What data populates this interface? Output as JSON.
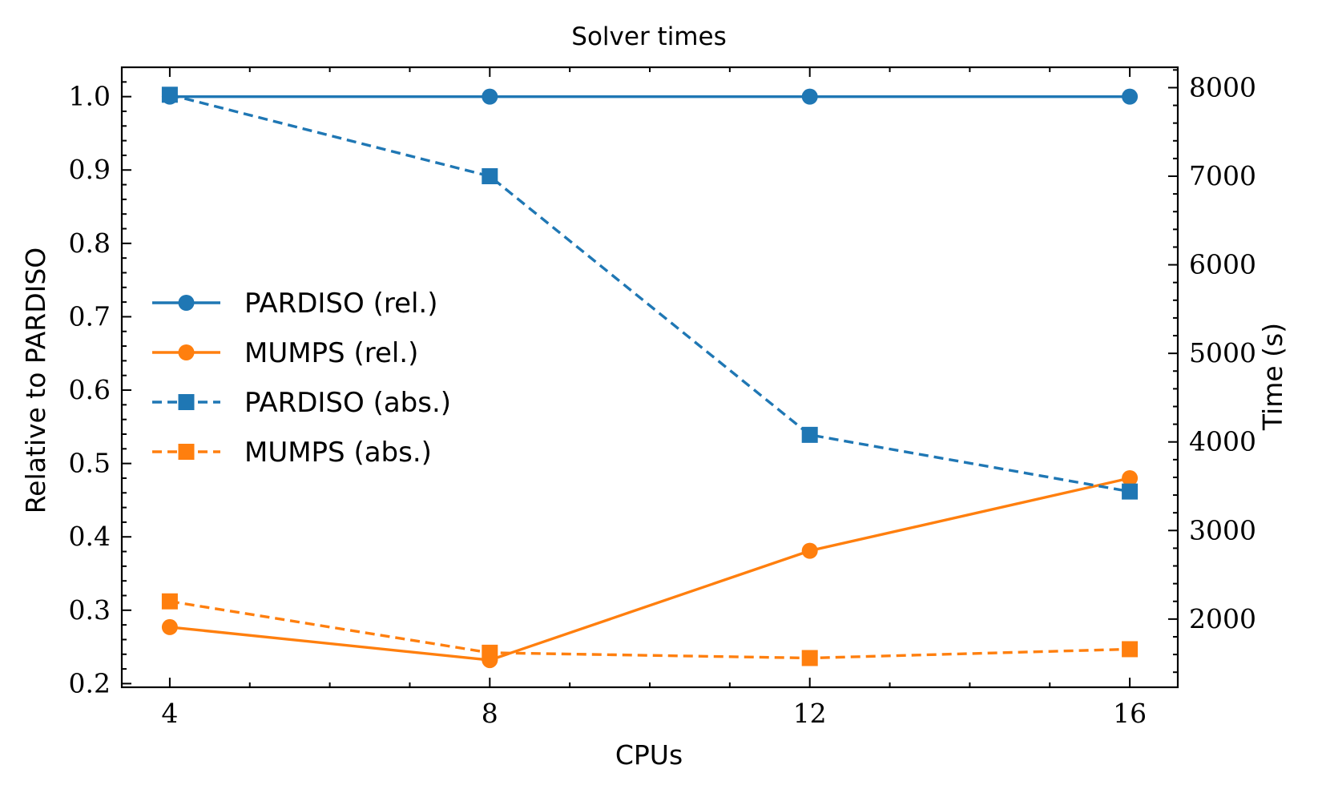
{
  "chart_data": {
    "type": "line",
    "title": "Solver times",
    "xlabel": "CPUs",
    "ylabel_left": "Relative to PARDISO",
    "ylabel_right": "Time (s)",
    "x": [
      4,
      8,
      12,
      16
    ],
    "xlim": [
      3.4,
      16.6
    ],
    "ylim_left": [
      0.195,
      1.04
    ],
    "ylim_right": [
      1230,
      8230
    ],
    "x_ticks": [
      4,
      8,
      12,
      16
    ],
    "y_left_ticks": [
      0.2,
      0.3,
      0.4,
      0.5,
      0.6,
      0.7,
      0.8,
      0.9,
      1.0
    ],
    "y_right_ticks": [
      2000,
      3000,
      4000,
      5000,
      6000,
      7000,
      8000
    ],
    "grid": false,
    "legend_position": "center-left",
    "colors": {
      "blue": "#1f77b4",
      "orange": "#ff7f0e"
    },
    "series": [
      {
        "name": "PARDISO (rel.)",
        "axis": "left",
        "color": "#1f77b4",
        "style": "solid",
        "marker": "circle",
        "values": [
          1.0,
          1.0,
          1.0,
          1.0
        ]
      },
      {
        "name": "MUMPS (rel.)",
        "axis": "left",
        "color": "#ff7f0e",
        "style": "solid",
        "marker": "circle",
        "values": [
          0.277,
          0.232,
          0.381,
          0.48
        ]
      },
      {
        "name": "PARDISO (abs.)",
        "axis": "right",
        "color": "#1f77b4",
        "style": "dashed",
        "marker": "square",
        "values": [
          7920,
          7000,
          4080,
          3440
        ]
      },
      {
        "name": "MUMPS (abs.)",
        "axis": "right",
        "color": "#ff7f0e",
        "style": "dashed",
        "marker": "square",
        "values": [
          2200,
          1620,
          1560,
          1660
        ]
      }
    ]
  }
}
